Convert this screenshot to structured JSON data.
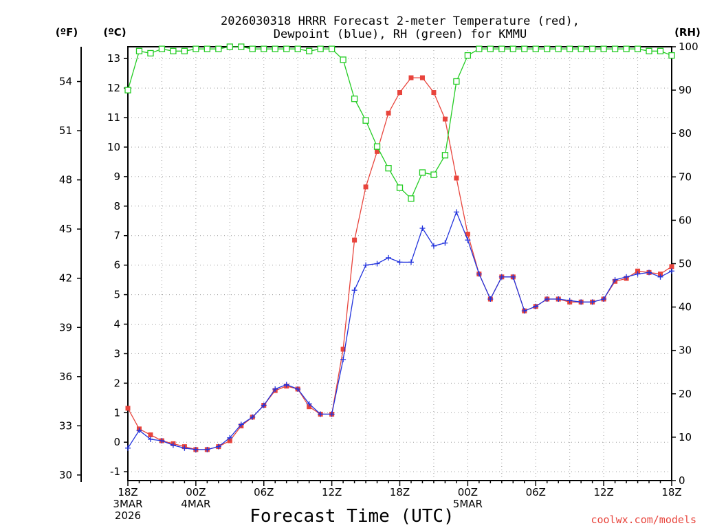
{
  "chart_data": {
    "type": "line",
    "title_line1": "2026030318 HRRR Forecast 2-meter Temperature (red),",
    "title_line2": "Dewpoint (blue), RH (green) for KMMU",
    "xlabel": "Forecast Time (UTC)",
    "credit": "coolwx.com/models",
    "units": {
      "left_f": "(ºF)",
      "left_c": "(ºC)",
      "right_rh": "(RH)"
    },
    "x_range": [
      0,
      48
    ],
    "celsius_range": [
      -1.3,
      13.4
    ],
    "rh_range": [
      0,
      100
    ],
    "celsius_ticks": [
      "-1",
      "0",
      "1",
      "2",
      "3",
      "4",
      "5",
      "6",
      "7",
      "8",
      "9",
      "10",
      "11",
      "12",
      "13"
    ],
    "fahrenheit_ticks": [
      {
        "value": 30,
        "label": "30"
      },
      {
        "value": 33,
        "label": "33"
      },
      {
        "value": 36,
        "label": "36"
      },
      {
        "value": 39,
        "label": "39"
      },
      {
        "value": 42,
        "label": "42"
      },
      {
        "value": 45,
        "label": "45"
      },
      {
        "value": 48,
        "label": "48"
      },
      {
        "value": 51,
        "label": "51"
      },
      {
        "value": 54,
        "label": "54"
      }
    ],
    "rh_ticks": [
      "0",
      "10",
      "20",
      "30",
      "40",
      "50",
      "60",
      "70",
      "80",
      "90",
      "100"
    ],
    "x_ticks": [
      {
        "hour": 0,
        "lines": [
          "18Z",
          "3MAR",
          "2026"
        ]
      },
      {
        "hour": 6,
        "lines": [
          "00Z",
          "4MAR"
        ]
      },
      {
        "hour": 12,
        "lines": [
          "06Z"
        ]
      },
      {
        "hour": 18,
        "lines": [
          "12Z"
        ]
      },
      {
        "hour": 24,
        "lines": [
          "18Z"
        ]
      },
      {
        "hour": 30,
        "lines": [
          "00Z",
          "5MAR"
        ]
      },
      {
        "hour": 36,
        "lines": [
          "06Z"
        ]
      },
      {
        "hour": 42,
        "lines": [
          "12Z"
        ]
      },
      {
        "hour": 48,
        "lines": [
          "18Z"
        ]
      }
    ],
    "series": [
      {
        "name": "Temperature",
        "color": "#e8443c",
        "marker": "filled-square",
        "unit": "C",
        "values": [
          1.15,
          0.45,
          0.25,
          0.05,
          -0.05,
          -0.15,
          -0.25,
          -0.25,
          -0.15,
          0.05,
          0.55,
          0.85,
          1.25,
          1.75,
          1.9,
          1.8,
          1.2,
          0.95,
          0.95,
          3.15,
          6.85,
          8.65,
          9.85,
          11.15,
          11.85,
          12.35,
          12.35,
          11.85,
          10.95,
          8.95,
          7.05,
          5.7,
          4.85,
          5.6,
          5.6,
          4.45,
          4.6,
          4.85,
          4.85,
          4.75,
          4.75,
          4.75,
          4.85,
          5.45,
          5.55,
          5.8,
          5.75,
          5.7,
          5.95
        ]
      },
      {
        "name": "Dewpoint",
        "color": "#2233dd",
        "marker": "plus",
        "unit": "C",
        "values": [
          -0.2,
          0.4,
          0.1,
          0.05,
          -0.1,
          -0.2,
          -0.25,
          -0.25,
          -0.15,
          0.15,
          0.6,
          0.85,
          1.25,
          1.8,
          1.95,
          1.8,
          1.3,
          0.95,
          0.95,
          2.8,
          5.15,
          6.0,
          6.05,
          6.25,
          6.1,
          6.1,
          7.25,
          6.65,
          6.75,
          7.8,
          6.85,
          5.7,
          4.85,
          5.6,
          5.6,
          4.45,
          4.6,
          4.85,
          4.85,
          4.8,
          4.75,
          4.75,
          4.85,
          5.5,
          5.6,
          5.7,
          5.75,
          5.6,
          5.8
        ]
      },
      {
        "name": "RH",
        "color": "#22cc22",
        "marker": "open-square",
        "unit": "%",
        "values": [
          90,
          99,
          98.5,
          99.5,
          99,
          99,
          99.5,
          99.5,
          99.5,
          100,
          100,
          99.5,
          99.5,
          99.5,
          99.5,
          99.5,
          99,
          99.5,
          99.5,
          97,
          88,
          83,
          77,
          72,
          67.5,
          65,
          71,
          70.5,
          75,
          92,
          98,
          99.5,
          99.5,
          99.5,
          99.5,
          99.5,
          99.5,
          99.5,
          99.5,
          99.5,
          99.5,
          99.5,
          99.5,
          99.5,
          99.5,
          99.5,
          99,
          99,
          98
        ]
      }
    ]
  }
}
